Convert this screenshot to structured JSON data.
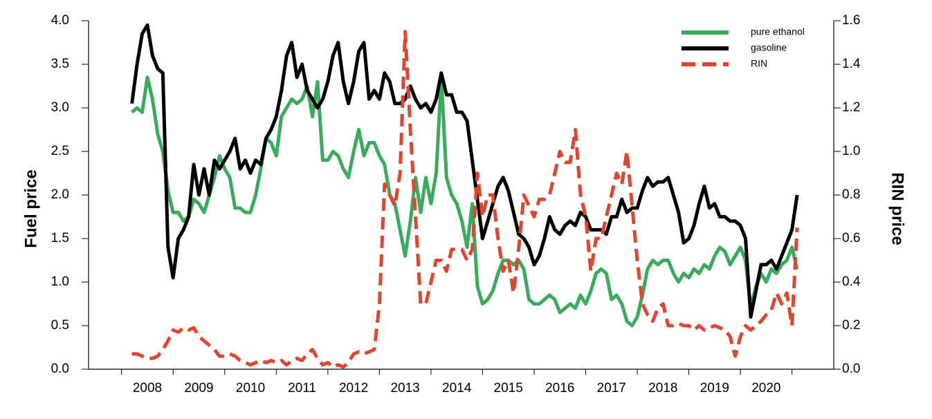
{
  "chart_data": {
    "type": "line",
    "ylabel": "Fuel price",
    "y2label": "RIN price",
    "legend": "upper right",
    "xlim": [
      2007.36,
      2021.81
    ],
    "xticks": [
      {
        "value": 2008.5,
        "label": "2008"
      },
      {
        "value": 2009.5,
        "label": "2009"
      },
      {
        "value": 2010.5,
        "label": "2010"
      },
      {
        "value": 2011.5,
        "label": "2011"
      },
      {
        "value": 2012.5,
        "label": "2012"
      },
      {
        "value": 2013.5,
        "label": "2013"
      },
      {
        "value": 2014.5,
        "label": "2014"
      },
      {
        "value": 2015.5,
        "label": "2015"
      },
      {
        "value": 2016.5,
        "label": "2016"
      },
      {
        "value": 2017.5,
        "label": "2017"
      },
      {
        "value": 2018.5,
        "label": "2018"
      },
      {
        "value": 2019.5,
        "label": "2019"
      },
      {
        "value": 2020.5,
        "label": "2020"
      }
    ],
    "ylim": [
      0,
      4
    ],
    "yticks": [
      {
        "value": 0,
        "label": "0.0"
      },
      0.5,
      {
        "value": 1,
        "label": "1.0"
      },
      1.5,
      {
        "value": 2,
        "label": "2.0"
      },
      2.5,
      {
        "value": 3,
        "label": "3.0"
      },
      3.5,
      {
        "value": 4,
        "label": "4.0"
      }
    ],
    "y2lim": [
      0,
      1.6
    ],
    "y2ticks": [
      {
        "value": 0,
        "label": "0.0"
      },
      0.2,
      0.4,
      0.6,
      0.8,
      {
        "value": 1,
        "label": "1.0"
      },
      1.2,
      1.4,
      1.6
    ],
    "x": [
      2008.2,
      2008.3,
      2008.4,
      2008.5,
      2008.6,
      2008.7,
      2008.8,
      2008.9,
      2009.0,
      2009.1,
      2009.2,
      2009.3,
      2009.4,
      2009.5,
      2009.6,
      2009.7,
      2009.8,
      2009.9,
      2010.0,
      2010.1,
      2010.2,
      2010.3,
      2010.4,
      2010.5,
      2010.6,
      2010.7,
      2010.8,
      2010.9,
      2011.0,
      2011.1,
      2011.2,
      2011.3,
      2011.4,
      2011.5,
      2011.6,
      2011.7,
      2011.8,
      2011.9,
      2012.0,
      2012.1,
      2012.2,
      2012.3,
      2012.4,
      2012.5,
      2012.6,
      2012.7,
      2012.8,
      2012.9,
      2013.0,
      2013.1,
      2013.2,
      2013.3,
      2013.4,
      2013.5,
      2013.6,
      2013.7,
      2013.8,
      2013.9,
      2014.0,
      2014.1,
      2014.2,
      2014.3,
      2014.4,
      2014.5,
      2014.6,
      2014.7,
      2014.8,
      2014.9,
      2015.0,
      2015.1,
      2015.2,
      2015.3,
      2015.4,
      2015.5,
      2015.6,
      2015.7,
      2015.8,
      2015.9,
      2016.0,
      2016.1,
      2016.2,
      2016.3,
      2016.4,
      2016.5,
      2016.6,
      2016.7,
      2016.8,
      2016.9,
      2017.0,
      2017.1,
      2017.2,
      2017.3,
      2017.4,
      2017.5,
      2017.6,
      2017.7,
      2017.8,
      2017.9,
      2018.0,
      2018.1,
      2018.2,
      2018.3,
      2018.4,
      2018.5,
      2018.6,
      2018.7,
      2018.8,
      2018.9,
      2019.0,
      2019.1,
      2019.2,
      2019.3,
      2019.4,
      2019.5,
      2019.6,
      2019.7,
      2019.8,
      2019.9,
      2020.0,
      2020.1,
      2020.2,
      2020.3,
      2020.4,
      2020.5,
      2020.6,
      2020.7,
      2020.8,
      2020.9,
      2021.0,
      2021.1
    ],
    "series": [
      {
        "name": "pure ethanol",
        "color": "#3aaa5c",
        "dash": false,
        "values": [
          2.95,
          3.0,
          2.95,
          3.35,
          3.1,
          2.7,
          2.5,
          2.05,
          1.8,
          1.8,
          1.7,
          1.75,
          1.95,
          1.9,
          1.8,
          2.0,
          2.2,
          2.45,
          2.3,
          2.2,
          1.85,
          1.85,
          1.8,
          1.8,
          2.0,
          2.3,
          2.65,
          2.6,
          2.45,
          2.9,
          3.0,
          3.1,
          3.05,
          3.1,
          3.25,
          2.9,
          3.3,
          2.4,
          2.4,
          2.5,
          2.45,
          2.3,
          2.2,
          2.5,
          2.75,
          2.45,
          2.6,
          2.6,
          2.45,
          2.35,
          2.0,
          1.9,
          1.6,
          1.3,
          1.7,
          2.2,
          1.8,
          2.2,
          1.9,
          2.25,
          3.35,
          2.2,
          2.0,
          1.9,
          1.7,
          1.4,
          1.9,
          0.95,
          0.75,
          0.8,
          0.9,
          1.1,
          1.25,
          1.25,
          1.2,
          1.25,
          1.15,
          0.8,
          0.75,
          0.75,
          0.8,
          0.85,
          0.8,
          0.65,
          0.7,
          0.75,
          0.7,
          0.85,
          0.75,
          0.9,
          1.1,
          1.15,
          1.1,
          0.8,
          0.85,
          0.75,
          0.55,
          0.5,
          0.6,
          0.85,
          1.15,
          1.25,
          1.2,
          1.25,
          1.25,
          1.1,
          1.0,
          1.1,
          1.05,
          1.15,
          1.1,
          1.2,
          1.15,
          1.3,
          1.4,
          1.35,
          1.2,
          1.3,
          1.4,
          1.25,
          0.7,
          0.95,
          1.1,
          1.0,
          1.15,
          1.1,
          1.2,
          1.25,
          1.4,
          1.15
        ]
      },
      {
        "name": "gasoline",
        "color": "#000000",
        "dash": false,
        "values": [
          3.05,
          3.5,
          3.85,
          3.95,
          3.6,
          3.45,
          3.4,
          1.4,
          1.05,
          1.5,
          1.6,
          1.75,
          2.35,
          2.0,
          2.3,
          2.0,
          2.4,
          2.3,
          2.4,
          2.5,
          2.65,
          2.3,
          2.4,
          2.25,
          2.4,
          2.35,
          2.65,
          2.75,
          2.9,
          3.2,
          3.6,
          3.75,
          3.35,
          3.5,
          3.2,
          3.1,
          3.0,
          3.1,
          3.3,
          3.6,
          3.75,
          3.3,
          3.05,
          3.3,
          3.65,
          3.75,
          3.1,
          3.2,
          3.1,
          3.4,
          3.3,
          3.05,
          3.05,
          3.1,
          3.25,
          3.1,
          3.0,
          3.05,
          2.95,
          3.1,
          3.4,
          3.15,
          3.15,
          2.95,
          2.95,
          2.85,
          2.4,
          1.95,
          1.5,
          1.7,
          1.9,
          2.1,
          2.2,
          2.05,
          1.8,
          1.55,
          1.5,
          1.4,
          1.2,
          1.3,
          1.5,
          1.75,
          1.6,
          1.55,
          1.65,
          1.7,
          1.65,
          1.8,
          1.75,
          1.6,
          1.6,
          1.6,
          1.55,
          1.75,
          1.75,
          1.95,
          1.8,
          1.85,
          1.85,
          2.05,
          2.2,
          2.1,
          2.15,
          2.15,
          2.2,
          2.0,
          1.8,
          1.45,
          1.5,
          1.65,
          1.9,
          2.1,
          1.85,
          1.9,
          1.75,
          1.75,
          1.7,
          1.7,
          1.65,
          1.5,
          0.6,
          0.9,
          1.2,
          1.2,
          1.25,
          1.15,
          1.3,
          1.45,
          1.6,
          2.0
        ]
      },
      {
        "name": "RIN",
        "color": "#e0452f",
        "dash": true,
        "axis": "y2",
        "values": [
          0.07,
          0.07,
          0.06,
          0.05,
          0.05,
          0.06,
          0.09,
          0.13,
          0.18,
          0.17,
          0.19,
          0.18,
          0.19,
          0.15,
          0.13,
          0.11,
          0.09,
          0.06,
          0.06,
          0.07,
          0.06,
          0.04,
          0.03,
          0.02,
          0.03,
          0.04,
          0.03,
          0.04,
          0.03,
          0.04,
          0.02,
          0.04,
          0.05,
          0.04,
          0.07,
          0.09,
          0.05,
          0.02,
          0.03,
          0.01,
          0.02,
          0.01,
          0.03,
          0.07,
          0.08,
          0.07,
          0.08,
          0.09,
          0.3,
          0.85,
          0.8,
          0.75,
          0.9,
          1.55,
          1.1,
          0.7,
          0.3,
          0.3,
          0.4,
          0.5,
          0.5,
          0.45,
          0.55,
          0.55,
          0.55,
          0.5,
          0.55,
          0.9,
          0.7,
          0.8,
          0.8,
          0.6,
          0.45,
          0.5,
          0.35,
          0.55,
          0.8,
          0.75,
          0.7,
          0.78,
          0.78,
          0.8,
          0.9,
          1.0,
          0.95,
          0.95,
          1.1,
          0.8,
          0.7,
          0.45,
          0.6,
          0.6,
          0.7,
          0.8,
          0.9,
          0.85,
          1.0,
          0.75,
          0.5,
          0.3,
          0.25,
          0.22,
          0.28,
          0.3,
          0.2,
          0.2,
          0.21,
          0.2,
          0.2,
          0.18,
          0.2,
          0.18,
          0.19,
          0.2,
          0.19,
          0.18,
          0.15,
          0.06,
          0.15,
          0.2,
          0.18,
          0.2,
          0.22,
          0.25,
          0.27,
          0.35,
          0.3,
          0.35,
          0.2,
          0.65
        ]
      }
    ]
  }
}
